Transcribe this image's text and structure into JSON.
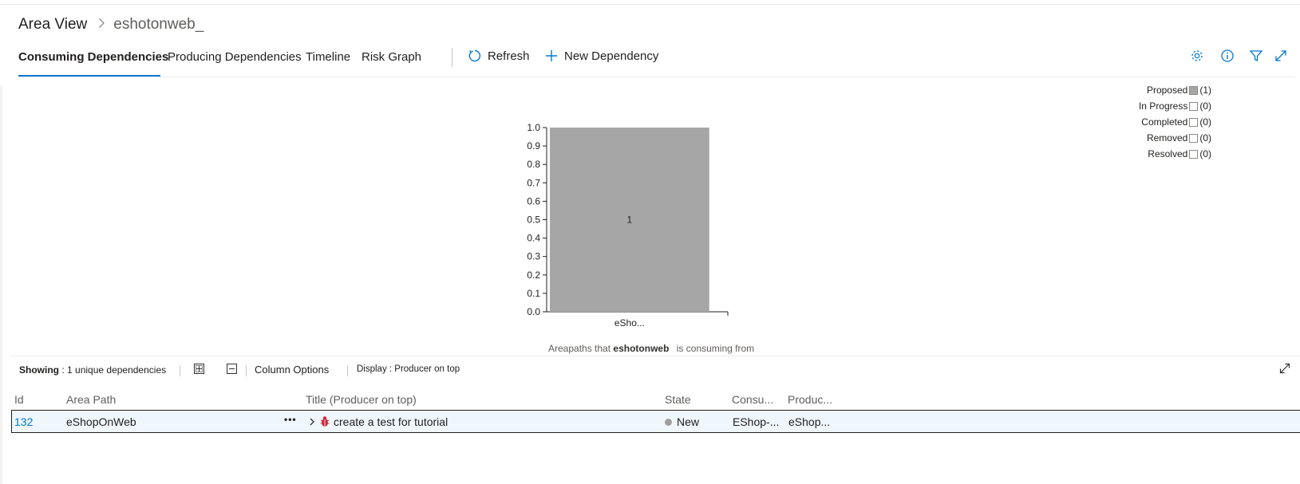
{
  "breadcrumb": {
    "root": "Area View",
    "current": "eshotonweb_"
  },
  "tabs": [
    {
      "label": "Consuming Dependencies",
      "active": true
    },
    {
      "label": "Producing Dependencies",
      "active": false
    },
    {
      "label": "Timeline",
      "active": false
    },
    {
      "label": "Risk Graph",
      "active": false
    }
  ],
  "commands": {
    "refresh_label": "Refresh",
    "new_dependency_label": "New Dependency"
  },
  "header_icons": [
    "gear-icon",
    "info-icon",
    "filter-icon",
    "expand-icon"
  ],
  "colors": {
    "accent": "#0078d4",
    "bar": "#a6a6a6",
    "selected_row": "#eff6fc",
    "state_new": "#a19f9d"
  },
  "chart_data": {
    "type": "bar",
    "categories": [
      "eSho..."
    ],
    "series": [
      {
        "name": "Proposed",
        "values": [
          1
        ]
      }
    ],
    "data_labels": [
      "1"
    ],
    "ylim": [
      0,
      1
    ],
    "yticks": [
      "0.0",
      "0.1",
      "0.2",
      "0.3",
      "0.4",
      "0.5",
      "0.6",
      "0.7",
      "0.8",
      "0.9",
      "1.0"
    ],
    "caption_prefix": "Areapaths that",
    "caption_bold": "eshotonweb",
    "caption_suffix": "is consuming from",
    "legend_placement": "right",
    "legend": [
      {
        "label": "Proposed",
        "count": "(1)",
        "filled": true
      },
      {
        "label": "In Progress",
        "count": "(0)",
        "filled": false
      },
      {
        "label": "Completed",
        "count": "(0)",
        "filled": false
      },
      {
        "label": "Removed",
        "count": "(0)",
        "filled": false
      },
      {
        "label": "Resolved",
        "count": "(0)",
        "filled": false
      }
    ]
  },
  "grid_toolbar": {
    "showing_label": "Showing",
    "showing_value": ": 1 unique dependencies",
    "column_options": "Column Options",
    "display_label": "Display : Producer on top"
  },
  "grid": {
    "columns": [
      "Id",
      "Area Path",
      "Title (Producer on top)",
      "State",
      "Consu...",
      "Produc..."
    ],
    "rows": [
      {
        "id": "132",
        "area_path": "eShopOnWeb",
        "more": "•••",
        "title": "create a test for tutorial",
        "state": "New",
        "consumer": "EShop-...",
        "producer": "eShop..."
      }
    ]
  }
}
